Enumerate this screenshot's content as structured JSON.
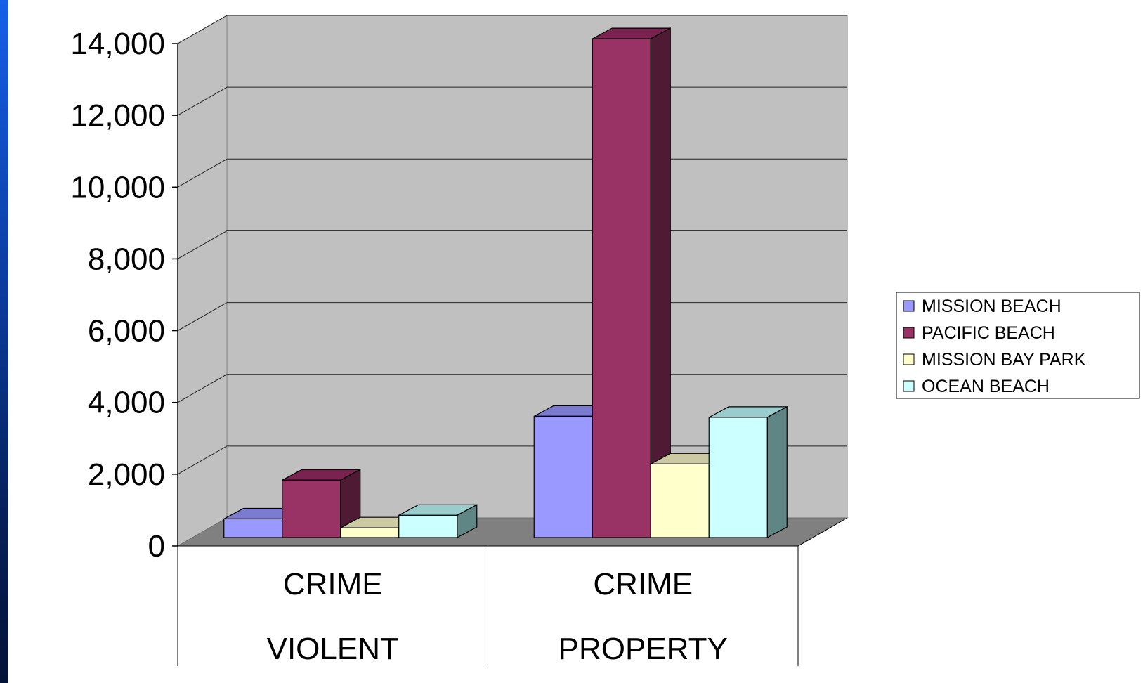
{
  "chart_data": {
    "type": "bar",
    "categories": [
      {
        "line1": "CRIME",
        "line2": "VIOLENT"
      },
      {
        "line1": "CRIME",
        "line2": "PROPERTY"
      }
    ],
    "series": [
      {
        "name": "MISSION BEACH",
        "values": [
          520,
          3380
        ],
        "color": "#9999ff",
        "top": "#7b7bd0",
        "side": "#6a6ab0"
      },
      {
        "name": "PACIFIC BEACH",
        "values": [
          1600,
          13900
        ],
        "color": "#993366",
        "top": "#7a2350",
        "side": "#4f1a33"
      },
      {
        "name": "MISSION BAY PARK",
        "values": [
          270,
          2050
        ],
        "color": "#ffffcc",
        "top": "#cccaa3",
        "side": "#a8a88a"
      },
      {
        "name": "OCEAN BEACH",
        "values": [
          620,
          3350
        ],
        "color": "#ccffff",
        "top": "#99cccc",
        "side": "#5f8585"
      }
    ],
    "yticks": [
      "0",
      "2,000",
      "4,000",
      "6,000",
      "8,000",
      "10,000",
      "12,000",
      "14,000"
    ],
    "ylim": [
      0,
      14000
    ],
    "grid": true,
    "legend": "right",
    "colors": {
      "wall": "#c0c0c0",
      "floor": "#808080",
      "page_top": "#1560e8",
      "page_bottom": "#031238"
    }
  }
}
